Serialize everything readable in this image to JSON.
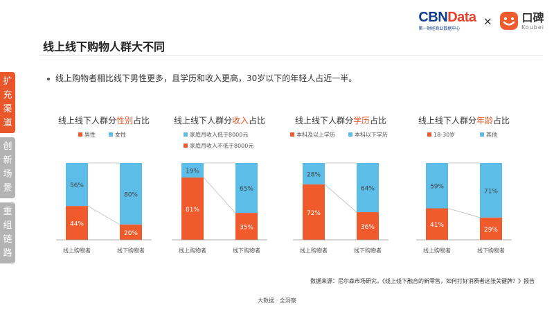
{
  "header": {
    "cbn_left": "CBN",
    "cbn_right": "Data",
    "cbn_sub": "第一财经商业数据中心",
    "times": "×",
    "koubei_cn": "口碑",
    "koubei_en": "Koubei",
    "koubei_icon": "koubei-smile-icon",
    "koubei_color": "#ef5b2c"
  },
  "page_title": "线上线下购物人群大不同",
  "bullet": "线上购物者相比线下男性更多，且学历和收入更高，30岁以下的年轻人占近一半。",
  "sidebar": [
    {
      "label": "扩充渠道",
      "chars": [
        "扩",
        "充",
        "渠",
        "道"
      ],
      "active": true
    },
    {
      "label": "创新场景",
      "chars": [
        "创",
        "新",
        "场",
        "景"
      ],
      "active": false
    },
    {
      "label": "重组链路",
      "chars": [
        "重",
        "组",
        "链",
        "路"
      ],
      "active": false
    }
  ],
  "colors": {
    "orange": "#ef5b2c",
    "blue": "#5bbde8",
    "highlight": "#e8562a"
  },
  "chart_data": [
    {
      "type": "bar",
      "stacked": true,
      "title_prefix": "线上线下人群分",
      "title_highlight": "性别",
      "title_suffix": "占比",
      "categories": [
        "线上购物者",
        "线下购物者"
      ],
      "series": [
        {
          "name": "男性",
          "values": [
            44,
            20
          ],
          "color": "#ef5b2c"
        },
        {
          "name": "女性",
          "values": [
            56,
            80
          ],
          "color": "#5bbde8"
        }
      ],
      "legend_order": [
        0,
        1
      ],
      "legend_layout": "row",
      "unit": "%",
      "ylim": [
        0,
        100
      ]
    },
    {
      "type": "bar",
      "stacked": true,
      "title_prefix": "线上线下人群分",
      "title_highlight": "收入",
      "title_suffix": "占比",
      "categories": [
        "线上购物者",
        "线下购物者"
      ],
      "series": [
        {
          "name": "家庭月收入不低于8000元",
          "values": [
            81,
            35
          ],
          "color": "#ef5b2c"
        },
        {
          "name": "家庭月收入低于8000元",
          "values": [
            19,
            65
          ],
          "color": "#5bbde8"
        }
      ],
      "legend_order": [
        1,
        0
      ],
      "legend_layout": "column",
      "unit": "%",
      "ylim": [
        0,
        100
      ]
    },
    {
      "type": "bar",
      "stacked": true,
      "title_prefix": "线上线下人群分",
      "title_highlight": "学历",
      "title_suffix": "占比",
      "categories": [
        "线上购物者",
        "线下购物者"
      ],
      "series": [
        {
          "name": "本科及以上学历",
          "values": [
            72,
            36
          ],
          "color": "#ef5b2c"
        },
        {
          "name": "本科以下学历",
          "values": [
            28,
            64
          ],
          "color": "#5bbde8"
        }
      ],
      "legend_order": [
        0,
        1
      ],
      "legend_layout": "row",
      "unit": "%",
      "ylim": [
        0,
        100
      ]
    },
    {
      "type": "bar",
      "stacked": true,
      "title_prefix": "线上线下人群分",
      "title_highlight": "年龄",
      "title_suffix": "占比",
      "categories": [
        "线上购物者",
        "线下购物者"
      ],
      "series": [
        {
          "name": "18-30岁",
          "values": [
            41,
            29
          ],
          "color": "#ef5b2c"
        },
        {
          "name": "其他",
          "values": [
            59,
            71
          ],
          "color": "#5bbde8"
        }
      ],
      "legend_order": [
        0,
        1
      ],
      "legend_layout": "row",
      "unit": "%",
      "ylim": [
        0,
        100
      ]
    }
  ],
  "source": "数据来源：尼尔森市场研究，《线上线下融合的新零售，如何打好消费者这张关键牌？》报告",
  "footer": "大数据 · 全洞察"
}
